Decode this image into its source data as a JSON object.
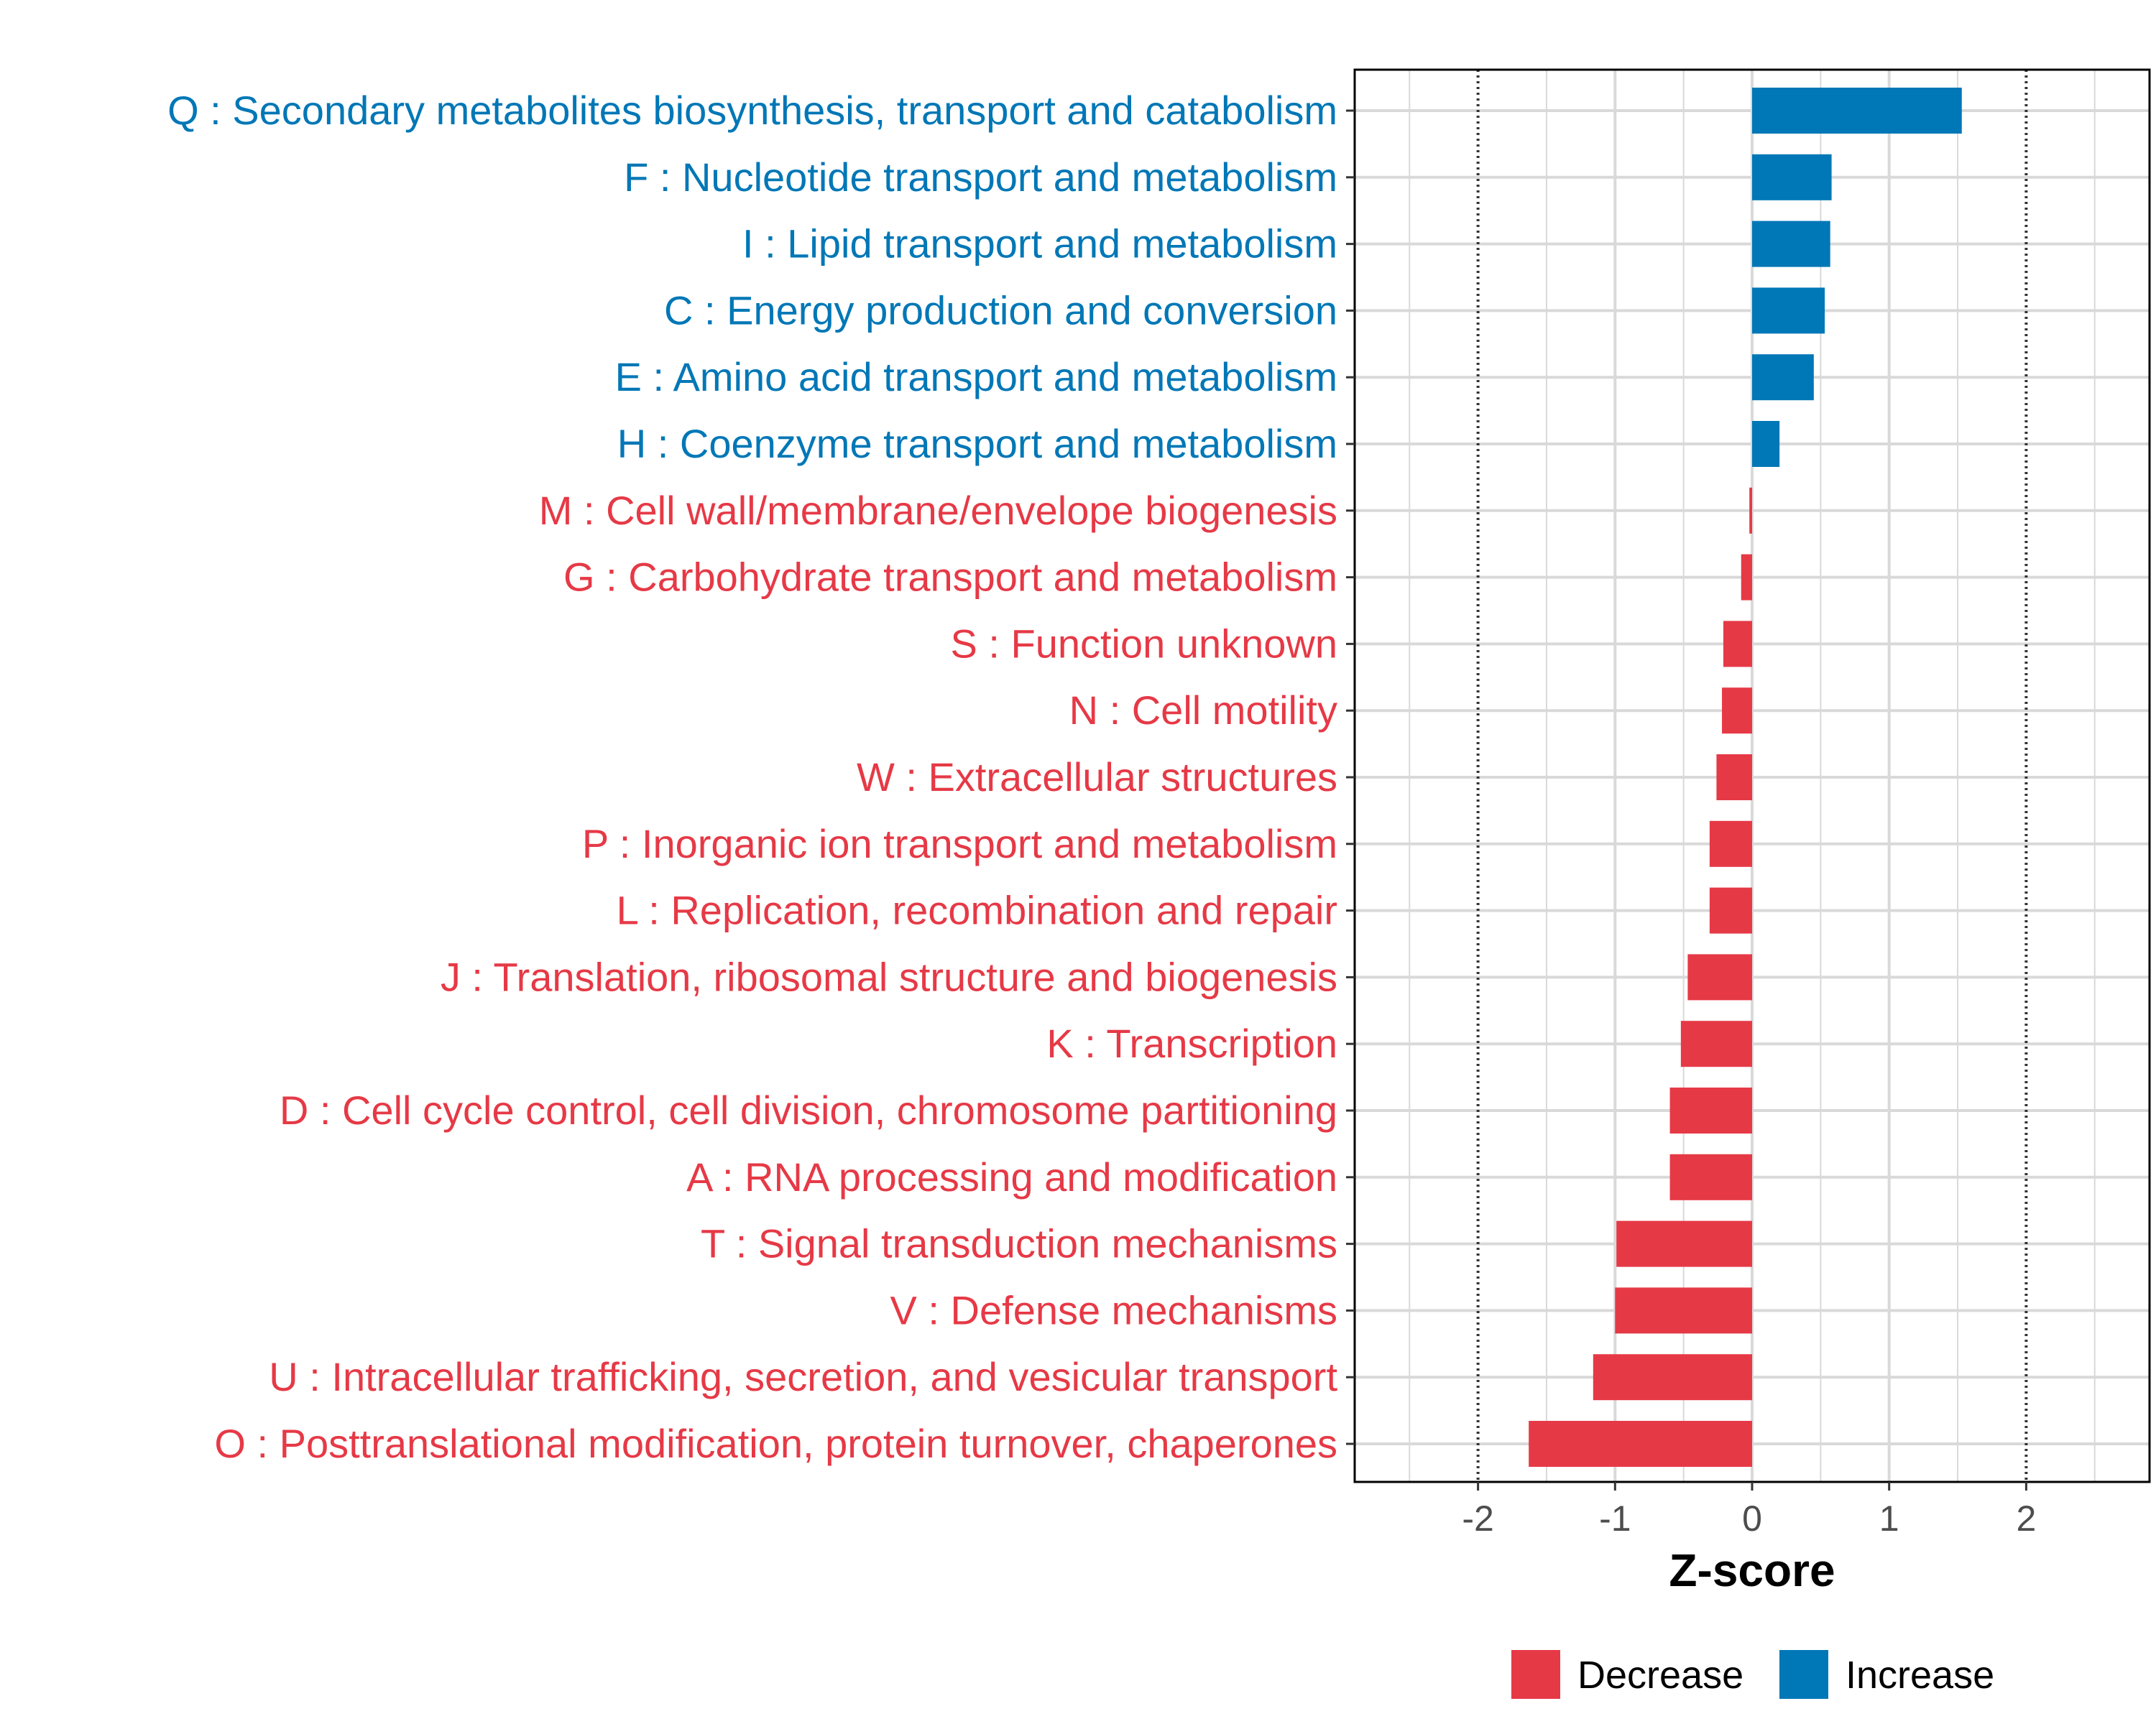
{
  "chart_data": {
    "type": "bar",
    "orientation": "horizontal",
    "xlabel": "Z-score",
    "xlim": [
      -2.9,
      2.9
    ],
    "xticks": [
      -2,
      -1,
      0,
      1,
      2
    ],
    "xtick_labels": [
      "-2",
      "-1",
      "0",
      "1",
      "2"
    ],
    "reference_lines": [
      -2,
      2
    ],
    "grid": true,
    "categories": [
      "Q : Secondary metabolites biosynthesis, transport and catabolism",
      "F : Nucleotide transport and metabolism",
      "I : Lipid transport and metabolism",
      "C : Energy production and conversion",
      "E : Amino acid transport and metabolism",
      "H : Coenzyme transport and metabolism",
      "M : Cell wall/membrane/envelope biogenesis",
      "G : Carbohydrate transport and metabolism",
      "S : Function unknown",
      "N : Cell motility",
      "W : Extracellular structures",
      "P : Inorganic ion transport and metabolism",
      "L : Replication, recombination and repair",
      "J : Translation, ribosomal structure and biogenesis",
      "K : Transcription",
      "D : Cell cycle control, cell division, chromosome partitioning",
      "A : RNA processing and modification",
      "T : Signal transduction mechanisms",
      "V : Defense mechanisms",
      "U : Intracellular trafficking, secretion, and vesicular transport",
      "O : Posttranslational modification, protein turnover, chaperones"
    ],
    "values": [
      1.53,
      0.58,
      0.57,
      0.53,
      0.45,
      0.2,
      -0.02,
      -0.08,
      -0.21,
      -0.22,
      -0.26,
      -0.31,
      -0.31,
      -0.47,
      -0.52,
      -0.6,
      -0.6,
      -0.99,
      -1.0,
      -1.16,
      -1.63
    ],
    "groups": [
      "Increase",
      "Increase",
      "Increase",
      "Increase",
      "Increase",
      "Increase",
      "Decrease",
      "Decrease",
      "Decrease",
      "Decrease",
      "Decrease",
      "Decrease",
      "Decrease",
      "Decrease",
      "Decrease",
      "Decrease",
      "Decrease",
      "Decrease",
      "Decrease",
      "Decrease",
      "Decrease"
    ],
    "legend": [
      {
        "label": "Decrease",
        "color": "#E63946"
      },
      {
        "label": "Increase",
        "color": "#0077B6"
      }
    ],
    "legend_position": "bottom"
  }
}
